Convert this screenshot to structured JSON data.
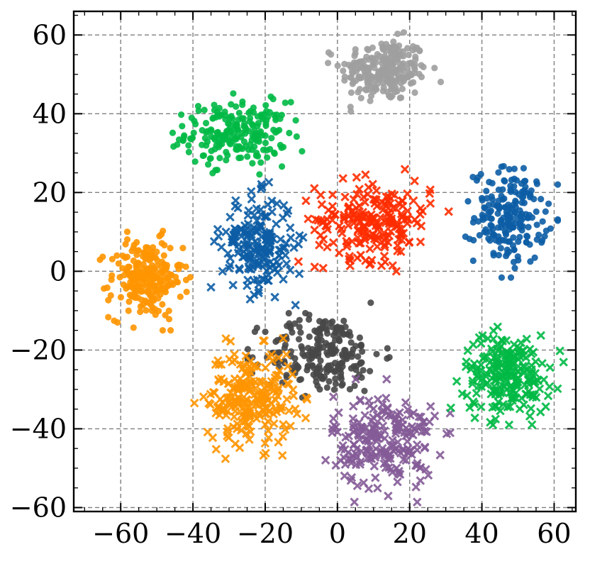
{
  "chart_data": {
    "type": "scatter",
    "title": "",
    "xlabel": "",
    "ylabel": "",
    "xlim": [
      -73,
      66
    ],
    "ylim": [
      -61,
      66
    ],
    "xticks": [
      -60,
      -40,
      -20,
      0,
      20,
      40,
      60
    ],
    "yticks": [
      -60,
      -40,
      -20,
      0,
      20,
      40,
      60
    ],
    "xtick_labels": [
      "−60",
      "−40",
      "−20",
      "0",
      "20",
      "40",
      "60"
    ],
    "ytick_labels": [
      "−60",
      "−40",
      "−20",
      "0",
      "20",
      "40",
      "60"
    ],
    "grid": true,
    "legend": "none",
    "colors": {
      "blue": "#0C5DA5",
      "green": "#00B945",
      "orange": "#FF9500",
      "red": "#FF2C00",
      "purple": "#845B97",
      "dark_gray": "#474747",
      "light_gray": "#9E9E9E"
    },
    "clusters": [
      {
        "marker": "circle",
        "color": "light_gray",
        "center": [
          13,
          51
        ],
        "spread": [
          6,
          4
        ],
        "count": 240
      },
      {
        "marker": "circle",
        "color": "green",
        "center": [
          -28,
          35
        ],
        "spread": [
          7,
          4
        ],
        "count": 220
      },
      {
        "marker": "circle",
        "color": "blue",
        "center": [
          48,
          14
        ],
        "spread": [
          5,
          6
        ],
        "count": 200
      },
      {
        "marker": "circle",
        "color": "orange",
        "center": [
          -53,
          -2
        ],
        "spread": [
          5,
          5
        ],
        "count": 230
      },
      {
        "marker": "circle",
        "color": "dark_gray",
        "center": [
          -4,
          -21
        ],
        "spread": [
          8,
          5
        ],
        "count": 230
      },
      {
        "marker": "cross",
        "color": "red",
        "center": [
          10,
          13
        ],
        "spread": [
          8,
          5
        ],
        "count": 210
      },
      {
        "marker": "cross",
        "color": "blue",
        "center": [
          -22,
          7
        ],
        "spread": [
          5,
          6
        ],
        "count": 190
      },
      {
        "marker": "cross",
        "color": "orange",
        "center": [
          -24,
          -32
        ],
        "spread": [
          6,
          6
        ],
        "count": 230
      },
      {
        "marker": "cross",
        "color": "purple",
        "center": [
          13,
          -43
        ],
        "spread": [
          7,
          6
        ],
        "count": 220
      },
      {
        "marker": "cross",
        "color": "green",
        "center": [
          47,
          -26
        ],
        "spread": [
          6,
          5
        ],
        "count": 220
      }
    ]
  }
}
